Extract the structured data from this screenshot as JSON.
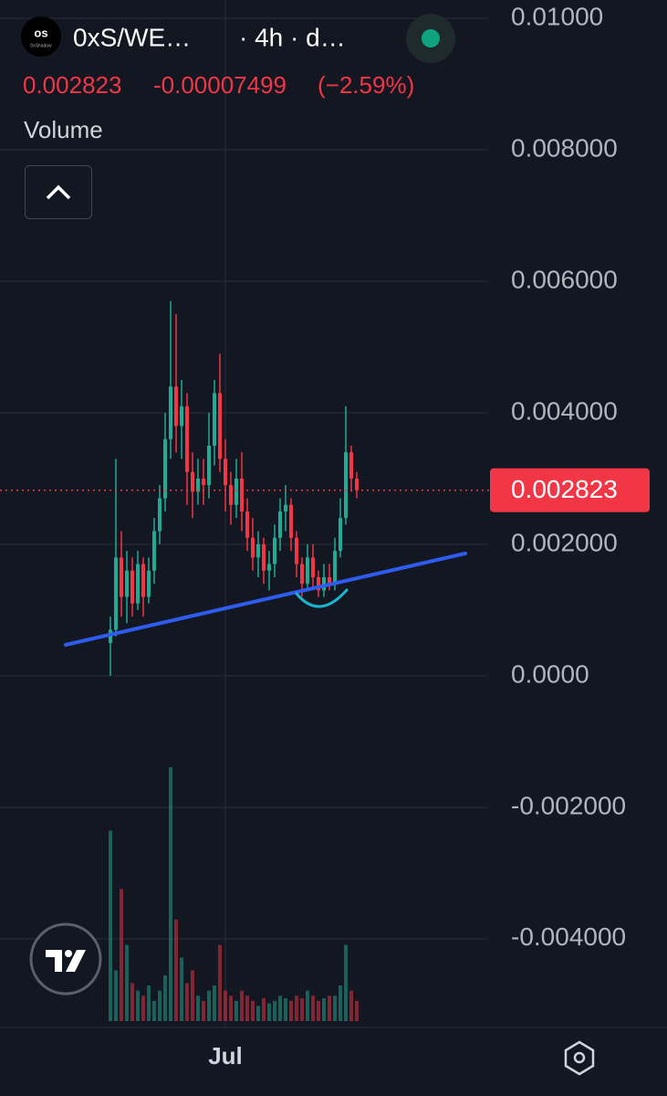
{
  "header": {
    "symbol": "0xS/WE…",
    "interval": "· 4h · d…",
    "price": "0.002823",
    "change": "-0.00007499",
    "change_percent": "(−2.59%)",
    "indicator": "Volume",
    "logo_text": "0xShadow"
  },
  "chart_data": {
    "type": "candlestick",
    "categories": [
      null,
      null,
      null,
      null,
      null,
      null,
      null,
      null,
      null,
      null,
      null,
      null,
      null,
      null,
      null,
      null,
      null,
      null,
      null,
      null,
      null,
      "Jul",
      null,
      null,
      null,
      null,
      null,
      null,
      null,
      null,
      null,
      null,
      null,
      null,
      null,
      null,
      null,
      null,
      null,
      null,
      null,
      null,
      null,
      null,
      null,
      null
    ],
    "open": [
      0.0005,
      0.0007,
      0.0018,
      0.0012,
      0.0016,
      0.0011,
      0.0017,
      0.0012,
      0.0016,
      0.0022,
      0.0027,
      0.0036,
      0.0044,
      0.0038,
      0.0041,
      0.0031,
      0.0028,
      0.003,
      0.0029,
      0.0035,
      0.0043,
      0.0033,
      0.0029,
      0.0026,
      0.003,
      0.0025,
      0.0021,
      0.0018,
      0.002,
      0.0016,
      0.0017,
      0.0021,
      0.0025,
      0.0026,
      0.0021,
      0.0017,
      0.0014,
      0.0018,
      0.0015,
      0.0013,
      0.0015,
      0.0014,
      0.0019,
      0.0024,
      0.0034,
      0.003
    ],
    "high": [
      0.0009,
      0.0033,
      0.0022,
      0.0019,
      0.0018,
      0.0019,
      0.0018,
      0.0018,
      0.0024,
      0.0029,
      0.004,
      0.0057,
      0.0055,
      0.0045,
      0.0043,
      0.0034,
      0.0033,
      0.0033,
      0.004,
      0.0045,
      0.0049,
      0.0036,
      0.0031,
      0.0033,
      0.0034,
      0.0027,
      0.0024,
      0.0022,
      0.0021,
      0.0019,
      0.0023,
      0.0027,
      0.0029,
      0.0027,
      0.0022,
      0.0018,
      0.002,
      0.002,
      0.0016,
      0.0017,
      0.0017,
      0.0021,
      0.0027,
      0.0041,
      0.0035,
      0.0031
    ],
    "low": [
      0,
      0.0006,
      0.0009,
      0.0008,
      0.0009,
      0.001,
      0.0009,
      0.0011,
      0.0014,
      0.002,
      0.0025,
      0.0033,
      0.0034,
      0.0033,
      0.0026,
      0.0024,
      0.0026,
      0.0026,
      0.0027,
      0.0032,
      0.0031,
      0.0025,
      0.0023,
      0.0024,
      0.0022,
      0.0019,
      0.0016,
      0.0015,
      0.0014,
      0.0013,
      0.0015,
      0.0019,
      0.0022,
      0.0019,
      0.0015,
      0.0012,
      0.0013,
      0.0013,
      0.0012,
      0.0012,
      0.0013,
      0.0013,
      0.0018,
      0.0023,
      0.0028,
      0.0027
    ],
    "close": [
      0.0007,
      0.0018,
      0.0012,
      0.0016,
      0.0011,
      0.0017,
      0.0012,
      0.0016,
      0.0022,
      0.0027,
      0.0036,
      0.0044,
      0.0038,
      0.0041,
      0.0031,
      0.0028,
      0.003,
      0.0029,
      0.0035,
      0.0043,
      0.0033,
      0.0029,
      0.0026,
      0.003,
      0.0025,
      0.0021,
      0.0018,
      0.002,
      0.0016,
      0.0017,
      0.0021,
      0.0025,
      0.0026,
      0.0021,
      0.0017,
      0.0014,
      0.0018,
      0.0015,
      0.0013,
      0.0015,
      0.0014,
      0.0019,
      0.0024,
      0.0034,
      0.003,
      0.002823
    ],
    "volume": [
      75,
      20,
      52,
      30,
      15,
      12,
      10,
      14,
      8,
      12,
      18,
      100,
      40,
      25,
      15,
      20,
      10,
      8,
      12,
      14,
      30,
      12,
      10,
      8,
      12,
      10,
      8,
      6,
      9,
      7,
      8,
      10,
      9,
      8,
      10,
      9,
      12,
      10,
      8,
      9,
      10,
      10,
      14,
      30,
      12,
      8
    ],
    "volume_lim": [
      0,
      100
    ],
    "up_color": "#22ab94",
    "down_color": "#f23645",
    "ylim": [
      -0.00535,
      0.01028
    ],
    "yticks": [
      {
        "value": 0.01,
        "label": "0.01000"
      },
      {
        "value": 0.008,
        "label": "0.008000"
      },
      {
        "value": 0.006,
        "label": "0.006000"
      },
      {
        "value": 0.004,
        "label": "0.004000"
      },
      {
        "value": 0.002,
        "label": "0.002000"
      },
      {
        "value": 0,
        "label": "0.0000"
      },
      {
        "value": -0.002,
        "label": "-0.002000"
      },
      {
        "value": -0.004,
        "label": "-0.004000"
      }
    ],
    "last_price": 0.002823,
    "grid": true
  }
}
